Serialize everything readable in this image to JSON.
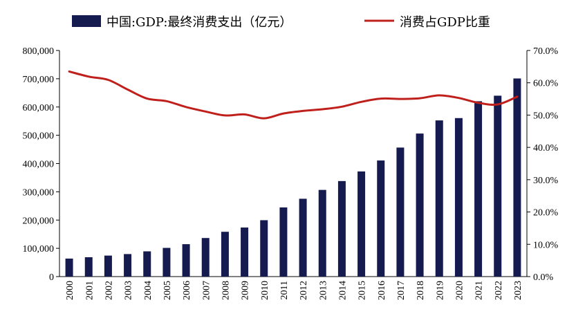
{
  "chart_data": {
    "type": "bar",
    "title": "",
    "xlabel": "",
    "ylabel": "",
    "categories": [
      "2000",
      "2001",
      "2002",
      "2003",
      "2004",
      "2005",
      "2006",
      "2007",
      "2008",
      "2009",
      "2010",
      "2011",
      "2012",
      "2013",
      "2014",
      "2015",
      "2016",
      "2017",
      "2018",
      "2019",
      "2020",
      "2021",
      "2022",
      "2023"
    ],
    "series": [
      {
        "name": "中国:GDP:最终消费支出（亿元）",
        "type": "bar",
        "axis": "left",
        "color": "#151a4f",
        "values": [
          63700,
          68500,
          74300,
          79700,
          89300,
          101500,
          114700,
          136500,
          158500,
          173600,
          199500,
          244700,
          275400,
          306700,
          338000,
          372000,
          410800,
          456500,
          506100,
          552600,
          560800,
          620400,
          640000,
          701000
        ]
      },
      {
        "name": "消费占GDP比重",
        "type": "line",
        "axis": "right",
        "color": "#c0201c",
        "values": [
          63.5,
          61.9,
          60.9,
          57.9,
          55.1,
          54.3,
          52.5,
          51.1,
          49.9,
          50.2,
          49.0,
          50.5,
          51.3,
          51.8,
          52.6,
          54.1,
          55.1,
          55.0,
          55.2,
          56.1,
          55.3,
          53.8,
          53.3,
          55.7
        ]
      }
    ],
    "y_left": {
      "ylim": [
        0,
        800000
      ],
      "ticks": [
        "0",
        "100,000",
        "200,000",
        "300,000",
        "400,000",
        "500,000",
        "600,000",
        "700,000",
        "800,000"
      ]
    },
    "y_right": {
      "ylim": [
        0,
        70
      ],
      "ticks": [
        "0.0%",
        "10.0%",
        "20.0%",
        "30.0%",
        "40.0%",
        "50.0%",
        "60.0%",
        "70.0%"
      ]
    },
    "grid": false,
    "legend_position": "top"
  }
}
